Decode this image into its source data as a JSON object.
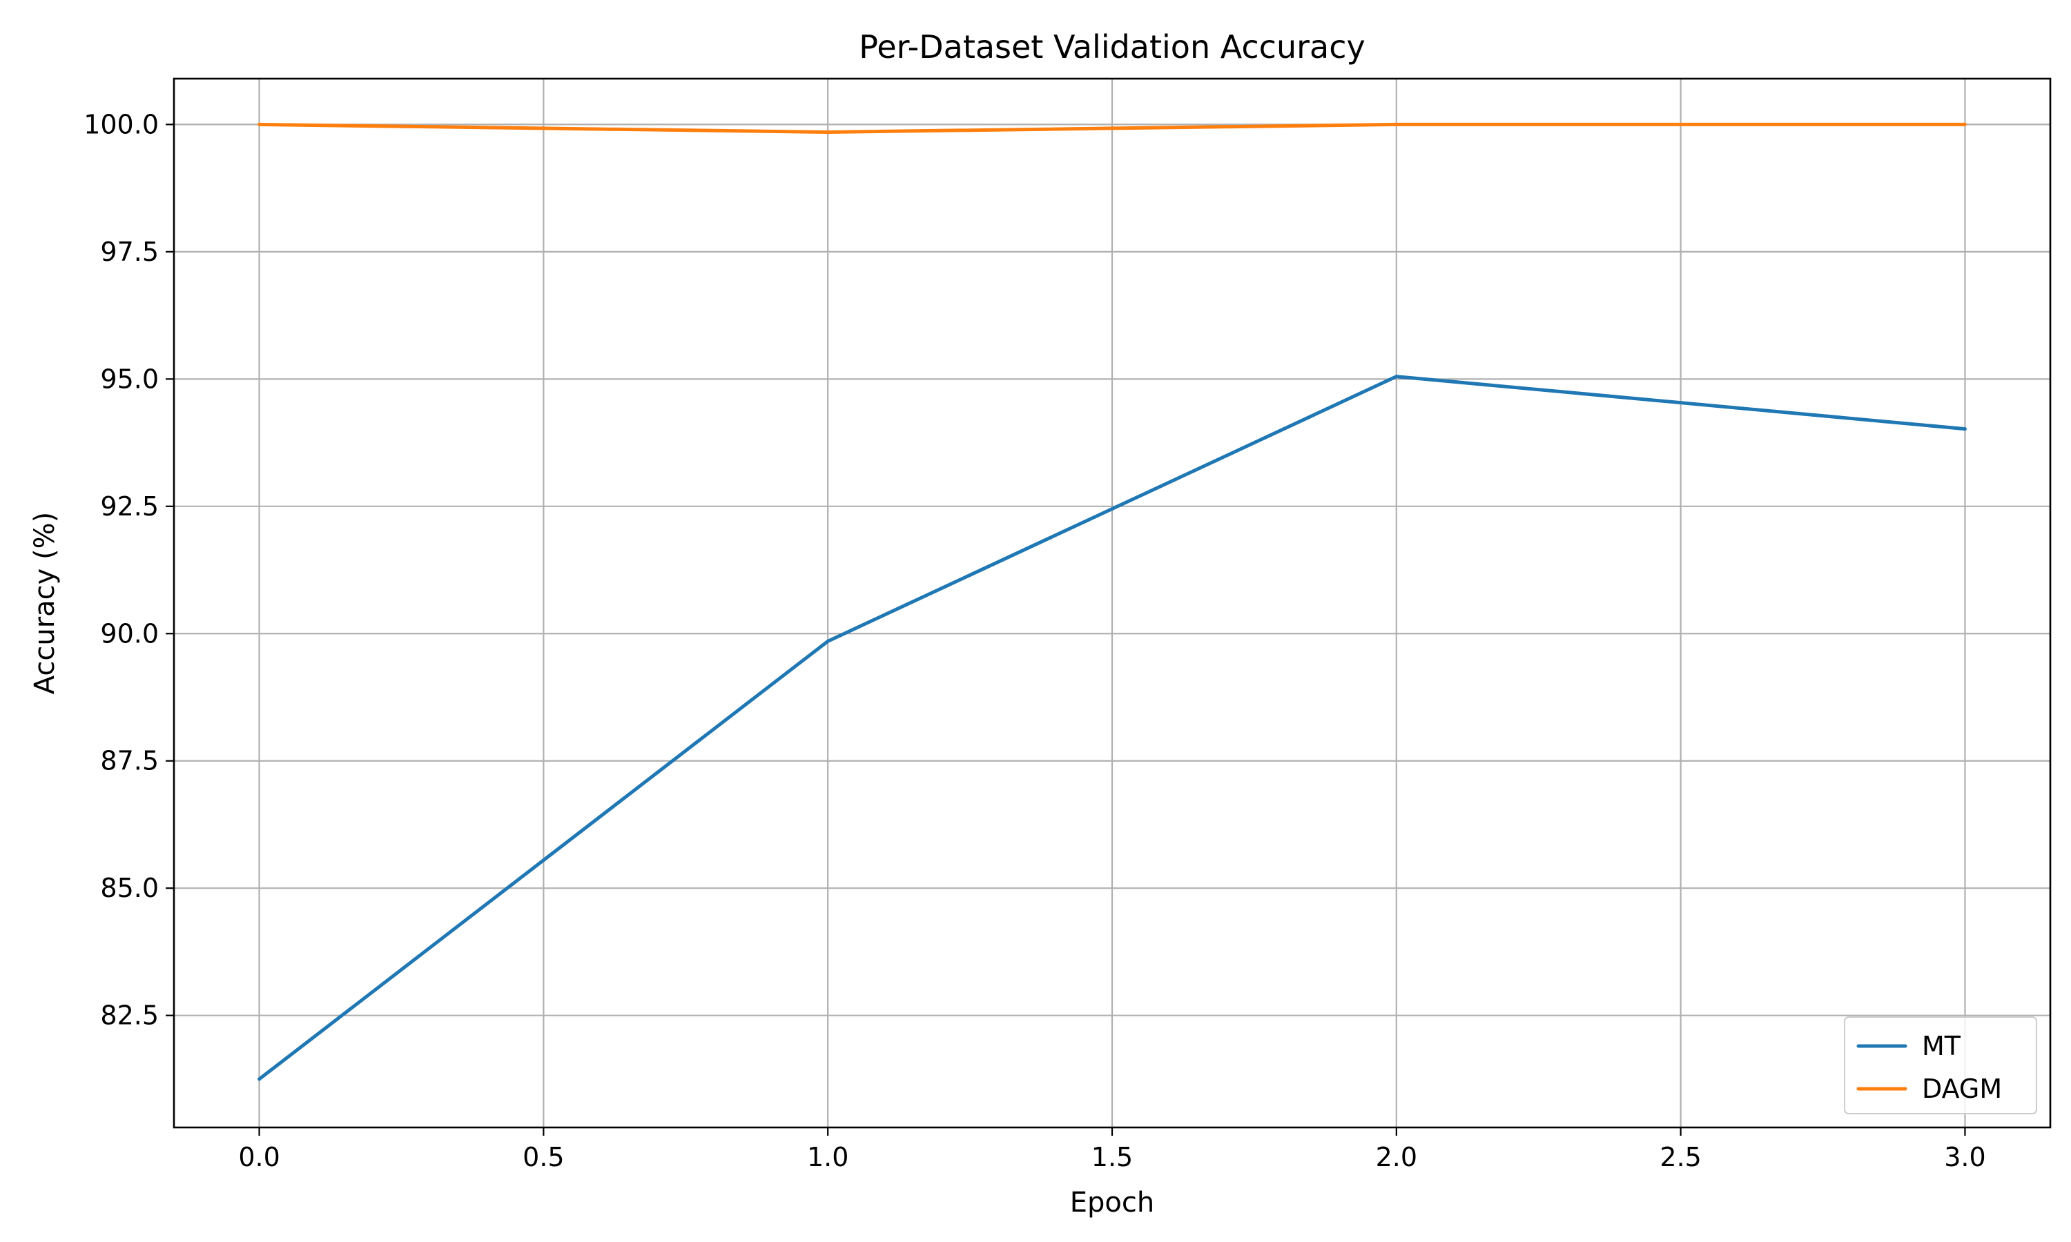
{
  "chart_data": {
    "type": "line",
    "title": "Per-Dataset Validation Accuracy",
    "xlabel": "Epoch",
    "ylabel": "Accuracy (%)",
    "x": [
      0,
      1,
      2,
      3
    ],
    "series": [
      {
        "name": "MT",
        "color": "#1f77b4",
        "values": [
          81.25,
          89.85,
          95.05,
          94.02
        ]
      },
      {
        "name": "DAGM",
        "color": "#ff7f0e",
        "values": [
          100.0,
          99.85,
          100.0,
          100.0
        ]
      }
    ],
    "xlim": [
      -0.15,
      3.15
    ],
    "ylim": [
      80.3,
      100.9
    ],
    "xticks": [
      0.0,
      0.5,
      1.0,
      1.5,
      2.0,
      2.5,
      3.0
    ],
    "xtick_labels": [
      "0.0",
      "0.5",
      "1.0",
      "1.5",
      "2.0",
      "2.5",
      "3.0"
    ],
    "yticks": [
      82.5,
      85.0,
      87.5,
      90.0,
      92.5,
      95.0,
      97.5,
      100.0
    ],
    "ytick_labels": [
      "82.5",
      "85.0",
      "87.5",
      "90.0",
      "92.5",
      "95.0",
      "97.5",
      "100.0"
    ],
    "grid": true,
    "legend_position": "lower-right"
  }
}
